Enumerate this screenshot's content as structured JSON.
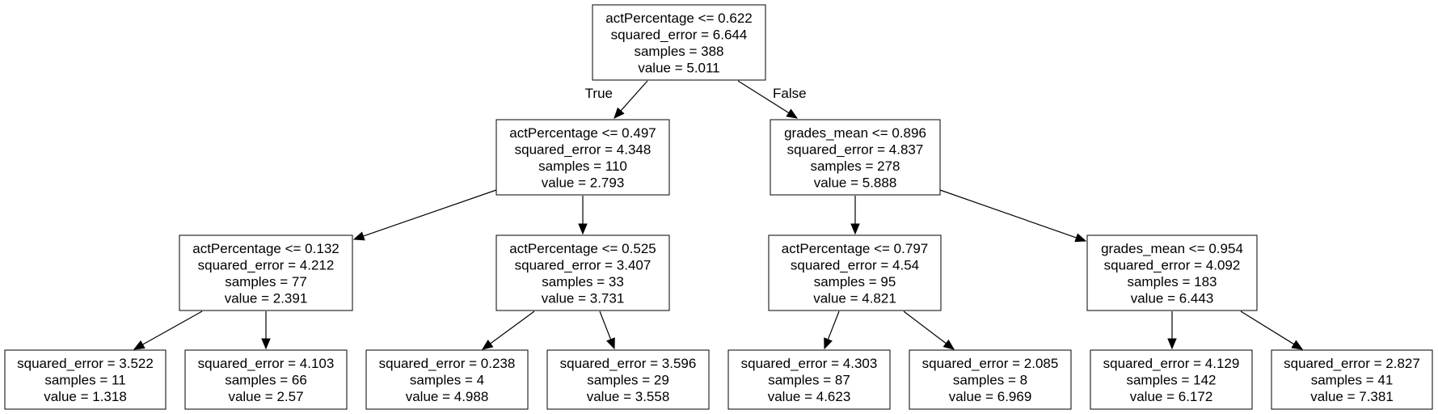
{
  "nodes": [
    {
      "id": "n0",
      "lines": [
        "actPercentage <= 0.622",
        "squared_error = 6.644",
        "samples = 388",
        "value = 5.011"
      ]
    },
    {
      "id": "n1",
      "lines": [
        "actPercentage <= 0.497",
        "squared_error = 4.348",
        "samples = 110",
        "value = 2.793"
      ]
    },
    {
      "id": "n2",
      "lines": [
        "grades_mean <= 0.896",
        "squared_error = 4.837",
        "samples = 278",
        "value = 5.888"
      ]
    },
    {
      "id": "n3",
      "lines": [
        "actPercentage <= 0.132",
        "squared_error = 4.212",
        "samples = 77",
        "value = 2.391"
      ]
    },
    {
      "id": "n4",
      "lines": [
        "actPercentage <= 0.525",
        "squared_error = 3.407",
        "samples = 33",
        "value = 3.731"
      ]
    },
    {
      "id": "n5",
      "lines": [
        "actPercentage <= 0.797",
        "squared_error = 4.54",
        "samples = 95",
        "value = 4.821"
      ]
    },
    {
      "id": "n6",
      "lines": [
        "grades_mean <= 0.954",
        "squared_error = 4.092",
        "samples = 183",
        "value = 6.443"
      ]
    },
    {
      "id": "n7",
      "lines": [
        "squared_error = 3.522",
        "samples = 11",
        "value = 1.318"
      ]
    },
    {
      "id": "n8",
      "lines": [
        "squared_error = 4.103",
        "samples = 66",
        "value = 2.57"
      ]
    },
    {
      "id": "n9",
      "lines": [
        "squared_error = 0.238",
        "samples = 4",
        "value = 4.988"
      ]
    },
    {
      "id": "n10",
      "lines": [
        "squared_error = 3.596",
        "samples = 29",
        "value = 3.558"
      ]
    },
    {
      "id": "n11",
      "lines": [
        "squared_error = 4.303",
        "samples = 87",
        "value = 4.623"
      ]
    },
    {
      "id": "n12",
      "lines": [
        "squared_error = 2.085",
        "samples = 8",
        "value = 6.969"
      ]
    },
    {
      "id": "n13",
      "lines": [
        "squared_error = 4.129",
        "samples = 142",
        "value = 6.172"
      ]
    },
    {
      "id": "n14",
      "lines": [
        "squared_error = 2.827",
        "samples = 41",
        "value = 7.381"
      ]
    }
  ],
  "edges": [
    {
      "from": "n0",
      "to": "n1",
      "label": "True"
    },
    {
      "from": "n0",
      "to": "n2",
      "label": "False"
    },
    {
      "from": "n1",
      "to": "n3",
      "label": ""
    },
    {
      "from": "n1",
      "to": "n4",
      "label": ""
    },
    {
      "from": "n2",
      "to": "n5",
      "label": ""
    },
    {
      "from": "n2",
      "to": "n6",
      "label": ""
    },
    {
      "from": "n3",
      "to": "n7",
      "label": ""
    },
    {
      "from": "n3",
      "to": "n8",
      "label": ""
    },
    {
      "from": "n4",
      "to": "n9",
      "label": ""
    },
    {
      "from": "n4",
      "to": "n10",
      "label": ""
    },
    {
      "from": "n5",
      "to": "n11",
      "label": ""
    },
    {
      "from": "n5",
      "to": "n12",
      "label": ""
    },
    {
      "from": "n6",
      "to": "n13",
      "label": ""
    },
    {
      "from": "n6",
      "to": "n14",
      "label": ""
    }
  ]
}
